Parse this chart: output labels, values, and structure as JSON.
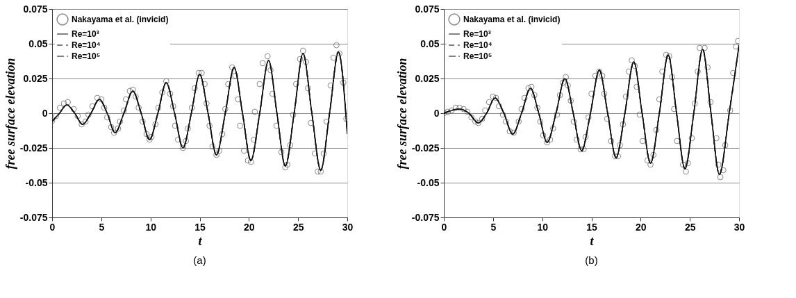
{
  "chart_data": [
    {
      "type": "line",
      "xlabel": "t",
      "ylabel": "free surface elevation",
      "annotations": [
        "(a)"
      ],
      "xlim": [
        0,
        30
      ],
      "xticks": [
        0,
        5,
        10,
        15,
        20,
        25,
        30
      ],
      "ylim": [
        -0.075,
        0.075
      ],
      "yticks": [
        -0.075,
        -0.05,
        -0.025,
        0,
        0.025,
        0.05,
        0.075
      ],
      "grid": "y",
      "legend": "top left",
      "series": [
        {
          "name": "Nakayama et al. (invicid)",
          "type": "scatter",
          "marker": "circle",
          "color": "#555555",
          "x": [
            0,
            0.4,
            0.8,
            1.2,
            1.6,
            2.2,
            2.6,
            3.0,
            3.4,
            3.7,
            4.1,
            4.6,
            5.0,
            5.3,
            5.6,
            6.0,
            6.3,
            6.7,
            6.9,
            7.3,
            7.5,
            7.9,
            8.2,
            8.5,
            8.8,
            9.2,
            9.6,
            9.9,
            10.1,
            10.5,
            10.8,
            11.2,
            11.6,
            12.0,
            12.3,
            12.5,
            12.8,
            13.3,
            13.6,
            13.8,
            14.2,
            14.5,
            14.9,
            15.2,
            15.5,
            15.7,
            16.0,
            16.3,
            16.7,
            17.0,
            17.3,
            17.6,
            17.9,
            18.3,
            18.6,
            18.9,
            19.1,
            19.5,
            19.9,
            20.2,
            20.5,
            20.6,
            21.1,
            21.4,
            21.9,
            22.2,
            22.4,
            22.8,
            23.3,
            23.7,
            23.9,
            24.2,
            24.5,
            24.8,
            25.2,
            25.5,
            25.8,
            26.0,
            26.3,
            26.7,
            27.0,
            27.3,
            27.6,
            27.9,
            28.3,
            28.6,
            28.9,
            29.2,
            29.6,
            29.9
          ],
          "values": [
            -0.0055,
            -0.002,
            0.004,
            0.007,
            0.008,
            0.003,
            -0.002,
            -0.008,
            -0.006,
            -0.001,
            0.005,
            0.011,
            0.01,
            0.004,
            -0.003,
            -0.01,
            -0.014,
            -0.011,
            -0.006,
            0.002,
            0.01,
            0.016,
            0.017,
            0.012,
            0.004,
            -0.006,
            -0.015,
            -0.019,
            -0.017,
            -0.008,
            0.004,
            0.015,
            0.023,
            0.014,
            0.005,
            -0.009,
            -0.019,
            -0.025,
            -0.02,
            -0.011,
            0.004,
            0.018,
            0.029,
            0.029,
            0.021,
            0.007,
            -0.009,
            -0.024,
            -0.03,
            -0.027,
            -0.015,
            0.003,
            0.021,
            0.033,
            0.027,
            0.01,
            -0.009,
            -0.027,
            -0.034,
            -0.035,
            -0.019,
            0.001,
            0.021,
            0.036,
            0.041,
            0.031,
            0.014,
            -0.009,
            -0.028,
            -0.039,
            -0.037,
            -0.023,
            -0.001,
            0.021,
            0.039,
            0.045,
            0.037,
            0.018,
            -0.007,
            -0.029,
            -0.042,
            -0.042,
            -0.029,
            -0.006,
            0.02,
            0.04,
            0.049,
            0.043,
            0.022,
            -0.004
          ]
        },
        {
          "name": "Re=10³",
          "type": "line",
          "line_style": "solid",
          "color": "#111111",
          "x": [
            0,
            0.75,
            1.5,
            2.3,
            3.1,
            3.95,
            4.8,
            5.6,
            6.4,
            7.3,
            8.2,
            9.05,
            9.9,
            10.75,
            11.6,
            12.45,
            13.3,
            14.15,
            15.0,
            15.85,
            16.7,
            17.6,
            18.5,
            19.35,
            20.2,
            21.1,
            22.0,
            22.85,
            23.7,
            24.6,
            25.5,
            26.4,
            27.3,
            28.2,
            29.1,
            30
          ],
          "values": [
            -0.006,
            0,
            0.006,
            0,
            -0.008,
            0,
            0.01,
            0,
            -0.014,
            0,
            0.016,
            0,
            -0.019,
            0,
            0.022,
            0,
            -0.025,
            0,
            0.028,
            0,
            -0.03,
            0,
            0.033,
            0,
            -0.034,
            0,
            0.038,
            0,
            -0.038,
            0,
            0.043,
            0,
            -0.041,
            0,
            0.044,
            -0.015
          ]
        },
        {
          "name": "Re=10⁴",
          "type": "line",
          "line_style": "dashed",
          "color": "#111111",
          "x": [
            0,
            0.75,
            1.5,
            2.3,
            3.1,
            3.95,
            4.8,
            5.6,
            6.4,
            7.3,
            8.2,
            9.05,
            9.9,
            10.75,
            11.6,
            12.45,
            13.3,
            14.15,
            15.0,
            15.85,
            16.7,
            17.6,
            18.5,
            19.35,
            20.2,
            21.1,
            22.0,
            22.85,
            23.7,
            24.6,
            25.5,
            26.4,
            27.3,
            28.2,
            29.1,
            30
          ],
          "values": [
            -0.006,
            0,
            0.006,
            0,
            -0.008,
            0,
            0.01,
            0,
            -0.014,
            0,
            0.016,
            0,
            -0.019,
            0,
            0.022,
            0,
            -0.025,
            0,
            0.028,
            0,
            -0.03,
            0,
            0.033,
            0,
            -0.034,
            0,
            0.038,
            0,
            -0.038,
            0,
            0.043,
            0,
            -0.041,
            0,
            0.044,
            -0.015
          ]
        },
        {
          "name": "Re=10⁵",
          "type": "line",
          "line_style": "dashdot",
          "color": "#111111",
          "x": [
            0,
            0.75,
            1.5,
            2.3,
            3.1,
            3.95,
            4.8,
            5.6,
            6.4,
            7.3,
            8.2,
            9.05,
            9.9,
            10.75,
            11.6,
            12.45,
            13.3,
            14.15,
            15.0,
            15.85,
            16.7,
            17.6,
            18.5,
            19.35,
            20.2,
            21.1,
            22.0,
            22.85,
            23.7,
            24.6,
            25.5,
            26.4,
            27.3,
            28.2,
            29.1,
            30
          ],
          "values": [
            -0.006,
            0,
            0.006,
            0,
            -0.008,
            0,
            0.01,
            0,
            -0.014,
            0,
            0.016,
            0,
            -0.019,
            0,
            0.022,
            0,
            -0.025,
            0,
            0.028,
            0,
            -0.03,
            0,
            0.033,
            0,
            -0.034,
            0,
            0.038,
            0,
            -0.038,
            0,
            0.043,
            0,
            -0.041,
            0,
            0.044,
            -0.015
          ]
        }
      ]
    },
    {
      "type": "line",
      "xlabel": "t",
      "ylabel": "free surface elevation",
      "annotations": [
        "(b)"
      ],
      "xlim": [
        0,
        30
      ],
      "xticks": [
        0,
        5,
        10,
        15,
        20,
        25,
        30
      ],
      "ylim": [
        -0.075,
        0.075
      ],
      "yticks": [
        -0.075,
        -0.05,
        -0.025,
        0,
        0.025,
        0.05,
        0.075
      ],
      "grid": "y",
      "legend": "top left",
      "series": [
        {
          "name": "Nakayama et al. (invicid)",
          "type": "scatter",
          "marker": "circle",
          "color": "#555555",
          "x": [
            0,
            0.4,
            0.8,
            1.2,
            1.6,
            2.0,
            2.4,
            2.8,
            3.2,
            3.5,
            3.9,
            4.2,
            4.6,
            5.0,
            5.3,
            5.6,
            6.0,
            6.3,
            6.7,
            7.1,
            7.6,
            7.9,
            8.2,
            8.6,
            8.9,
            9.2,
            9.5,
            9.8,
            10.1,
            10.5,
            10.8,
            11.1,
            11.5,
            11.8,
            12.1,
            12.4,
            12.6,
            12.9,
            13.2,
            13.5,
            13.9,
            14.2,
            14.4,
            14.7,
            15.0,
            15.4,
            15.8,
            16.1,
            16.3,
            16.6,
            17.0,
            17.4,
            17.7,
            17.9,
            18.2,
            18.5,
            18.8,
            19.1,
            19.4,
            19.6,
            19.9,
            20.2,
            20.7,
            21.0,
            21.3,
            21.6,
            21.9,
            22.2,
            22.6,
            22.9,
            23.2,
            23.4,
            23.7,
            24.3,
            24.6,
            24.8,
            25.2,
            25.5,
            25.8,
            26.0,
            26.5,
            26.8,
            27.1,
            27.7,
            27.9,
            28.1,
            28.4,
            28.6,
            29.1,
            29.4,
            29.7,
            29.9
          ],
          "values": [
            0.0,
            0.001,
            0.002,
            0.004,
            0.004,
            0.003,
            0.001,
            -0.003,
            -0.006,
            -0.007,
            -0.004,
            0.002,
            0.008,
            0.012,
            0.011,
            0.005,
            -0.001,
            -0.006,
            -0.013,
            -0.014,
            -0.006,
            0.003,
            0.011,
            0.018,
            0.019,
            0.013,
            0.004,
            -0.006,
            -0.016,
            -0.021,
            -0.019,
            -0.011,
            -0.001,
            0.013,
            0.022,
            0.026,
            0.02,
            0.009,
            -0.006,
            -0.019,
            -0.026,
            -0.026,
            -0.017,
            -0.003,
            0.014,
            0.027,
            0.03,
            0.027,
            0.014,
            -0.004,
            -0.02,
            -0.031,
            -0.031,
            -0.023,
            -0.008,
            0.012,
            0.03,
            0.038,
            0.034,
            0.019,
            -0.001,
            -0.02,
            -0.034,
            -0.037,
            -0.03,
            -0.012,
            0.01,
            0.03,
            0.042,
            0.041,
            0.026,
            0.003,
            -0.02,
            -0.037,
            -0.042,
            -0.036,
            -0.018,
            0.007,
            0.03,
            0.047,
            0.047,
            0.033,
            0.008,
            -0.018,
            -0.037,
            -0.046,
            -0.041,
            -0.023,
            0.002,
            0.029,
            0.048,
            0.052
          ]
        },
        {
          "name": "Re=10³",
          "type": "line",
          "line_style": "solid",
          "color": "#111111",
          "x": [
            0,
            1.6,
            2.55,
            3.5,
            4.35,
            5.2,
            6.1,
            7.0,
            7.9,
            8.8,
            9.65,
            10.5,
            11.4,
            12.3,
            13.15,
            14.0,
            14.9,
            15.8,
            16.65,
            17.5,
            18.4,
            19.3,
            20.15,
            21.0,
            21.9,
            22.8,
            23.65,
            24.5,
            25.4,
            26.3,
            27.15,
            28.0,
            29.0,
            30
          ],
          "values": [
            0,
            0.003,
            0,
            -0.007,
            0,
            0.011,
            0,
            -0.015,
            0,
            0.018,
            0,
            -0.021,
            0,
            0.025,
            0,
            -0.027,
            0,
            0.031,
            0,
            -0.032,
            0,
            0.037,
            0,
            -0.036,
            0,
            0.042,
            0,
            -0.04,
            0,
            0.046,
            0,
            -0.044,
            0,
            0.049
          ]
        },
        {
          "name": "Re=10⁴",
          "type": "line",
          "line_style": "dashed",
          "color": "#111111",
          "x": [
            0,
            1.6,
            2.55,
            3.5,
            4.35,
            5.2,
            6.1,
            7.0,
            7.9,
            8.8,
            9.65,
            10.5,
            11.4,
            12.3,
            13.15,
            14.0,
            14.9,
            15.8,
            16.65,
            17.5,
            18.4,
            19.3,
            20.15,
            21.0,
            21.9,
            22.8,
            23.65,
            24.5,
            25.4,
            26.3,
            27.15,
            28.0,
            29.0,
            30
          ],
          "values": [
            0,
            0.003,
            0,
            -0.007,
            0,
            0.011,
            0,
            -0.015,
            0,
            0.018,
            0,
            -0.021,
            0,
            0.025,
            0,
            -0.027,
            0,
            0.031,
            0,
            -0.032,
            0,
            0.037,
            0,
            -0.036,
            0,
            0.042,
            0,
            -0.04,
            0,
            0.046,
            0,
            -0.044,
            0,
            0.049
          ]
        },
        {
          "name": "Re=10⁵",
          "type": "line",
          "line_style": "dashdot",
          "color": "#111111",
          "x": [
            0,
            1.6,
            2.55,
            3.5,
            4.35,
            5.2,
            6.1,
            7.0,
            7.9,
            8.8,
            9.65,
            10.5,
            11.4,
            12.3,
            13.15,
            14.0,
            14.9,
            15.8,
            16.65,
            17.5,
            18.4,
            19.3,
            20.15,
            21.0,
            21.9,
            22.8,
            23.65,
            24.5,
            25.4,
            26.3,
            27.15,
            28.0,
            29.0,
            30
          ],
          "values": [
            0,
            0.003,
            0,
            -0.007,
            0,
            0.011,
            0,
            -0.015,
            0,
            0.018,
            0,
            -0.021,
            0,
            0.025,
            0,
            -0.027,
            0,
            0.031,
            0,
            -0.032,
            0,
            0.037,
            0,
            -0.036,
            0,
            0.042,
            0,
            -0.04,
            0,
            0.046,
            0,
            -0.044,
            0,
            0.049
          ]
        }
      ]
    }
  ]
}
